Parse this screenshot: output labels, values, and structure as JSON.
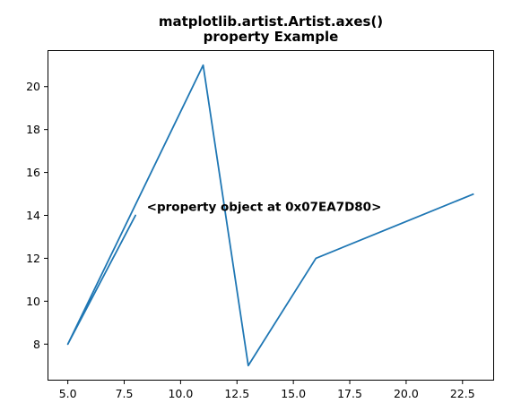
{
  "chart_data": {
    "type": "line",
    "title_line1": "matplotlib.artist.Artist.axes()",
    "title_line2": "property Example",
    "xlabel": "",
    "ylabel": "",
    "xlim": [
      4.1,
      23.9
    ],
    "ylim": [
      6.3,
      21.7
    ],
    "xticks": [
      5.0,
      7.5,
      10.0,
      12.5,
      15.0,
      17.5,
      20.0,
      22.5
    ],
    "xtick_labels": [
      "5.0",
      "7.5",
      "10.0",
      "12.5",
      "15.0",
      "17.5",
      "20.0",
      "22.5"
    ],
    "yticks": [
      8,
      10,
      12,
      14,
      16,
      18,
      20
    ],
    "ytick_labels": [
      "8",
      "10",
      "12",
      "14",
      "16",
      "18",
      "20"
    ],
    "grid": false,
    "series": [
      {
        "color": "#1f77b4",
        "x": [
          5,
          8,
          5,
          11,
          13,
          16,
          23
        ],
        "y": [
          8,
          14,
          8,
          21,
          7,
          12,
          15
        ]
      }
    ],
    "annotation": {
      "text": "<property object at 0x07EA7D80>",
      "x": 8.5,
      "y": 14.2
    }
  }
}
